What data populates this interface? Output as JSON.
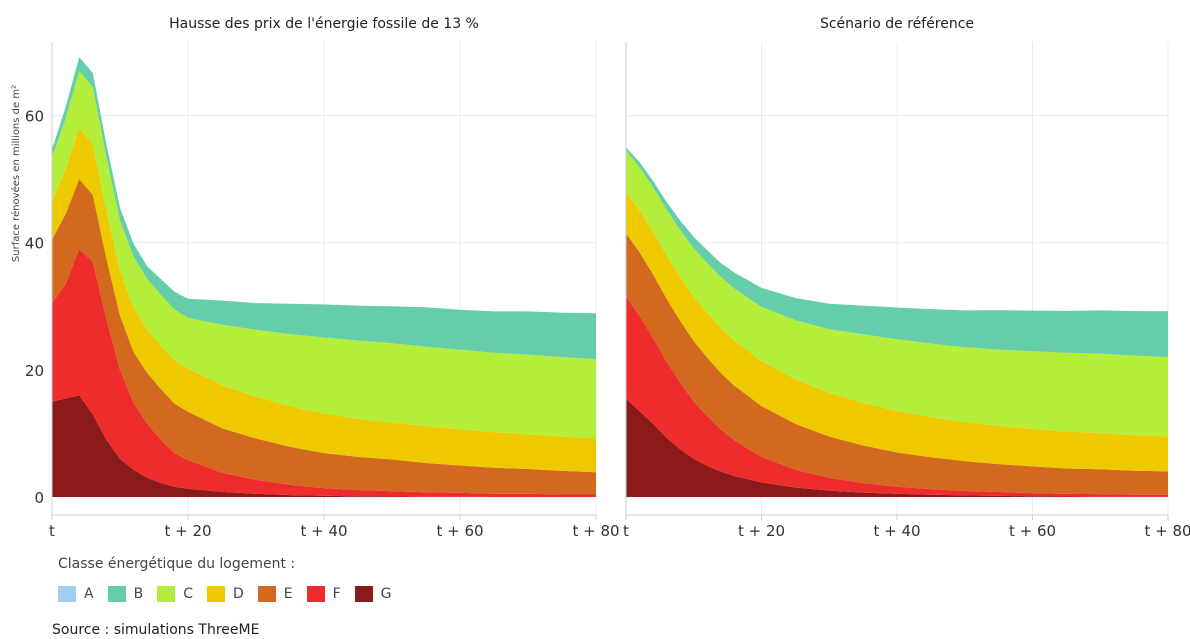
{
  "chart_data": [
    {
      "type": "area",
      "subtype": "stacked",
      "title": "Hausse des prix de l'énergie fossile de 13 %",
      "ylabel": "Surface rénovées en millions de m²",
      "xlabel": "",
      "ylim": [
        0,
        70
      ],
      "yticks": [
        0,
        20,
        40,
        60
      ],
      "xticks": [
        {
          "value": 0,
          "label": "t"
        },
        {
          "value": 20,
          "label": "t + 20"
        },
        {
          "value": 40,
          "label": "t + 40"
        },
        {
          "value": 60,
          "label": "t + 60"
        },
        {
          "value": 80,
          "label": "t + 80"
        }
      ],
      "xlim": [
        0,
        80
      ],
      "grid": true,
      "x": [
        0,
        2,
        4,
        6,
        8,
        10,
        12,
        14,
        16,
        18,
        20,
        25,
        30,
        35,
        40,
        45,
        50,
        55,
        60,
        65,
        70,
        75,
        80
      ],
      "series": [
        {
          "name": "A",
          "color": "#9ccfee",
          "values": [
            0,
            0,
            0,
            0,
            0,
            0,
            0,
            0,
            0,
            0,
            0,
            0,
            0,
            0,
            0,
            0,
            0,
            0,
            0,
            0,
            0,
            0,
            0
          ]
        },
        {
          "name": "B",
          "color": "#66cdaa",
          "values": [
            1.2,
            1.8,
            2.2,
            2.2,
            2,
            2,
            2,
            2,
            2.5,
            2.8,
            3,
            3.8,
            4.2,
            4.8,
            5.2,
            5.5,
            5.8,
            6.2,
            6.3,
            6.5,
            6.8,
            7,
            7.2
          ]
        },
        {
          "name": "C",
          "color": "#b3ee3a",
          "values": [
            7,
            8,
            9,
            9,
            8.5,
            8,
            8,
            8,
            8,
            8,
            8,
            9.5,
            10.5,
            11.3,
            12,
            12.3,
            12.5,
            12.5,
            12.5,
            12.5,
            12.5,
            12.5,
            12.5
          ]
        },
        {
          "name": "D",
          "color": "#eec900",
          "values": [
            6,
            7,
            8,
            8,
            7.5,
            7,
            7,
            6.8,
            6.8,
            6.8,
            6.8,
            6.8,
            6.6,
            6.4,
            6.2,
            6,
            5.8,
            5.8,
            5.7,
            5.6,
            5.5,
            5.4,
            5.3
          ]
        },
        {
          "name": "E",
          "color": "#d2691e",
          "values": [
            10,
            11,
            11,
            10.5,
            9.5,
            8.5,
            8,
            8,
            8,
            7.8,
            7.6,
            7,
            6.5,
            6,
            5.5,
            5.2,
            5,
            4.6,
            4.3,
            4.1,
            3.9,
            3.7,
            3.5
          ]
        },
        {
          "name": "F",
          "color": "#ee2c2c",
          "values": [
            15.5,
            18,
            23,
            24,
            19,
            14,
            10.5,
            8.5,
            6.8,
            5.3,
            4.5,
            3,
            2.2,
            1.6,
            1.2,
            1,
            0.8,
            0.7,
            0.6,
            0.5,
            0.5,
            0.4,
            0.4
          ]
        },
        {
          "name": "G",
          "color": "#8b1a1a",
          "values": [
            15,
            15.5,
            16,
            13,
            9,
            6,
            4.3,
            3,
            2.2,
            1.6,
            1.3,
            0.8,
            0.5,
            0.3,
            0.2,
            0.1,
            0.1,
            0.05,
            0.05,
            0,
            0,
            0,
            0
          ]
        }
      ]
    },
    {
      "type": "area",
      "subtype": "stacked",
      "title": "Scénario de référence",
      "xlabel": "",
      "ylabel": "",
      "ylim": [
        0,
        70
      ],
      "xticks": [
        {
          "value": 0,
          "label": "t"
        },
        {
          "value": 20,
          "label": "t + 20"
        },
        {
          "value": 40,
          "label": "t + 40"
        },
        {
          "value": 60,
          "label": "t + 60"
        },
        {
          "value": 80,
          "label": "t + 80"
        }
      ],
      "xlim": [
        0,
        80
      ],
      "grid": true,
      "x": [
        0,
        2,
        4,
        6,
        8,
        10,
        12,
        14,
        16,
        18,
        20,
        25,
        30,
        35,
        40,
        45,
        50,
        55,
        60,
        65,
        70,
        75,
        80
      ],
      "series": [
        {
          "name": "A",
          "color": "#9ccfee",
          "values": [
            0,
            0,
            0,
            0,
            0,
            0,
            0,
            0,
            0,
            0,
            0,
            0,
            0,
            0,
            0,
            0,
            0,
            0,
            0,
            0,
            0,
            0,
            0
          ]
        },
        {
          "name": "B",
          "color": "#66cdaa",
          "values": [
            0.5,
            0.8,
            1,
            1.2,
            1.5,
            1.8,
            2,
            2.2,
            2.5,
            2.8,
            3,
            3.5,
            4,
            4.5,
            5,
            5.4,
            5.8,
            6.2,
            6.4,
            6.6,
            6.8,
            7,
            7.2
          ]
        },
        {
          "name": "C",
          "color": "#b3ee3a",
          "values": [
            6.5,
            6.8,
            7,
            7.2,
            7.4,
            7.6,
            7.8,
            8,
            8.2,
            8.3,
            8.5,
            9.3,
            10,
            10.8,
            11.3,
            11.6,
            11.8,
            12,
            12.2,
            12.4,
            12.5,
            12.5,
            12.5
          ]
        },
        {
          "name": "D",
          "color": "#eec900",
          "values": [
            6.5,
            6.6,
            6.7,
            6.8,
            6.9,
            7,
            7.1,
            7.1,
            7.1,
            7.1,
            7.1,
            7,
            6.9,
            6.7,
            6.5,
            6.3,
            6.1,
            6,
            5.9,
            5.8,
            5.7,
            5.6,
            5.5
          ]
        },
        {
          "name": "E",
          "color": "#d2691e",
          "values": [
            10,
            10,
            10,
            9.9,
            9.7,
            9.5,
            9.2,
            8.9,
            8.6,
            8.3,
            8,
            7.2,
            6.5,
            5.9,
            5.4,
            5,
            4.7,
            4.4,
            4.2,
            4,
            3.9,
            3.8,
            3.7
          ]
        },
        {
          "name": "F",
          "color": "#ee2c2c",
          "values": [
            16,
            15,
            13.5,
            12,
            10.5,
            9,
            7.8,
            6.6,
            5.6,
            4.8,
            4,
            2.8,
            2,
            1.5,
            1.1,
            0.9,
            0.7,
            0.6,
            0.5,
            0.4,
            0.4,
            0.3,
            0.3
          ]
        },
        {
          "name": "G",
          "color": "#8b1a1a",
          "values": [
            15.5,
            13.5,
            11.5,
            9.3,
            7.5,
            6,
            4.9,
            4,
            3.3,
            2.8,
            2.3,
            1.5,
            1,
            0.7,
            0.5,
            0.35,
            0.25,
            0.18,
            0.12,
            0.08,
            0.05,
            0.04,
            0.03
          ]
        }
      ]
    }
  ],
  "legend": {
    "title": "Classe énergétique du logement :",
    "items": [
      {
        "label": "A",
        "color": "#9ccfee"
      },
      {
        "label": "B",
        "color": "#66cdaa"
      },
      {
        "label": "C",
        "color": "#b3ee3a"
      },
      {
        "label": "D",
        "color": "#eec900"
      },
      {
        "label": "E",
        "color": "#d2691e"
      },
      {
        "label": "F",
        "color": "#ee2c2c"
      },
      {
        "label": "G",
        "color": "#8b1a1a"
      }
    ]
  },
  "source": "Source : simulations ThreeME"
}
